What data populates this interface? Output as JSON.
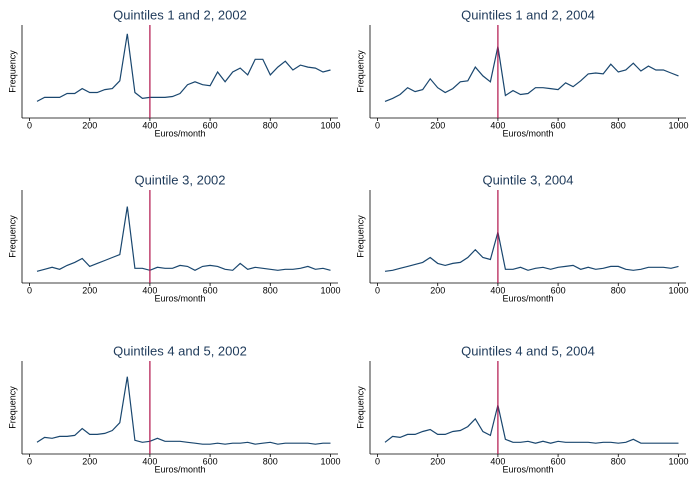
{
  "chart_data": [
    {
      "type": "line",
      "title": "Quintiles 1 and 2, 2002",
      "xlabel": "Euros/month",
      "ylabel": "Frequency",
      "x": [
        25,
        50,
        75,
        100,
        125,
        150,
        175,
        200,
        225,
        250,
        275,
        300,
        325,
        350,
        375,
        400,
        425,
        450,
        475,
        500,
        525,
        550,
        575,
        600,
        625,
        650,
        675,
        700,
        725,
        750,
        775,
        800,
        825,
        850,
        875,
        900,
        925,
        950,
        975,
        1000
      ],
      "series": [
        {
          "color": "#1a476f",
          "values": [
            17,
            21,
            21,
            21,
            25,
            25,
            30,
            26,
            26,
            29,
            30,
            38,
            86,
            26,
            20,
            21,
            21,
            21,
            22,
            25,
            34,
            37,
            34,
            33,
            47,
            37,
            47,
            51,
            44,
            60,
            60,
            44,
            52,
            58,
            49,
            54,
            52,
            51,
            47,
            49
          ]
        }
      ],
      "xlim": [
        -25,
        1025
      ],
      "xticks": [
        0,
        200,
        400,
        600,
        800,
        1000
      ],
      "ylim": [
        0,
        95
      ],
      "vline": 400,
      "vline_color": "#b0124a"
    },
    {
      "type": "line",
      "title": "Quintiles 1 and 2, 2004",
      "xlabel": "Euros/month",
      "ylabel": "Frequency",
      "x": [
        25,
        50,
        75,
        100,
        125,
        150,
        175,
        200,
        225,
        250,
        275,
        300,
        325,
        350,
        375,
        400,
        425,
        450,
        475,
        500,
        525,
        550,
        575,
        600,
        625,
        650,
        675,
        700,
        725,
        750,
        775,
        800,
        825,
        850,
        875,
        900,
        925,
        950,
        975,
        1000
      ],
      "series": [
        {
          "color": "#1a476f",
          "values": [
            17,
            20,
            24,
            31,
            27,
            29,
            40,
            31,
            26,
            30,
            37,
            38,
            52,
            43,
            37,
            73,
            23,
            28,
            24,
            25,
            31,
            31,
            30,
            29,
            36,
            32,
            38,
            45,
            46,
            45,
            55,
            47,
            49,
            56,
            48,
            53,
            49,
            49,
            46,
            43
          ]
        }
      ],
      "xlim": [
        -25,
        1025
      ],
      "xticks": [
        0,
        200,
        400,
        600,
        800,
        1000
      ],
      "ylim": [
        0,
        95
      ],
      "vline": 400,
      "vline_color": "#b0124a"
    },
    {
      "type": "line",
      "title": "Quintile 3, 2002",
      "xlabel": "Euros/month",
      "ylabel": "Frequency",
      "x": [
        25,
        50,
        75,
        100,
        125,
        150,
        175,
        200,
        225,
        250,
        275,
        300,
        325,
        350,
        375,
        400,
        425,
        450,
        475,
        500,
        525,
        550,
        575,
        600,
        625,
        650,
        675,
        700,
        725,
        750,
        775,
        800,
        825,
        850,
        875,
        900,
        925,
        950,
        975,
        1000
      ],
      "series": [
        {
          "color": "#1a476f",
          "values": [
            12,
            14,
            16,
            14,
            18,
            21,
            25,
            17,
            20,
            23,
            26,
            29,
            78,
            15,
            15,
            13,
            16,
            15,
            15,
            18,
            17,
            13,
            17,
            18,
            17,
            14,
            13,
            20,
            14,
            16,
            15,
            14,
            13,
            14,
            14,
            15,
            17,
            14,
            15,
            13
          ]
        }
      ],
      "xlim": [
        -25,
        1025
      ],
      "xticks": [
        0,
        200,
        400,
        600,
        800,
        1000
      ],
      "ylim": [
        0,
        95
      ],
      "vline": 400,
      "vline_color": "#b0124a"
    },
    {
      "type": "line",
      "title": "Quintile 3, 2004",
      "xlabel": "Euros/month",
      "ylabel": "Frequency",
      "x": [
        25,
        50,
        75,
        100,
        125,
        150,
        175,
        200,
        225,
        250,
        275,
        300,
        325,
        350,
        375,
        400,
        425,
        450,
        475,
        500,
        525,
        550,
        575,
        600,
        625,
        650,
        675,
        700,
        725,
        750,
        775,
        800,
        825,
        850,
        875,
        900,
        925,
        950,
        975,
        1000
      ],
      "series": [
        {
          "color": "#1a476f",
          "values": [
            12,
            13,
            15,
            17,
            19,
            21,
            26,
            20,
            18,
            20,
            21,
            26,
            34,
            26,
            24,
            52,
            14,
            14,
            16,
            13,
            15,
            16,
            14,
            16,
            17,
            18,
            14,
            16,
            14,
            15,
            17,
            17,
            14,
            13,
            14,
            16,
            16,
            16,
            15,
            17
          ]
        }
      ],
      "xlim": [
        -25,
        1025
      ],
      "xticks": [
        0,
        200,
        400,
        600,
        800,
        1000
      ],
      "ylim": [
        0,
        95
      ],
      "vline": 400,
      "vline_color": "#b0124a"
    },
    {
      "type": "line",
      "title": "Quintiles 4 and 5, 2002",
      "xlabel": "Euros/month",
      "ylabel": "Frequency",
      "x": [
        25,
        50,
        75,
        100,
        125,
        150,
        175,
        200,
        225,
        250,
        275,
        300,
        325,
        350,
        375,
        400,
        425,
        450,
        475,
        500,
        525,
        550,
        575,
        600,
        625,
        650,
        675,
        700,
        725,
        750,
        775,
        800,
        825,
        850,
        875,
        900,
        925,
        950,
        975,
        1000
      ],
      "series": [
        {
          "color": "#1a476f",
          "values": [
            12,
            17,
            16,
            18,
            18,
            19,
            26,
            20,
            20,
            21,
            24,
            32,
            79,
            14,
            12,
            13,
            16,
            13,
            13,
            13,
            12,
            11,
            10,
            10,
            11,
            10,
            11,
            11,
            12,
            10,
            11,
            12,
            10,
            11,
            11,
            11,
            11,
            10,
            11,
            11
          ]
        }
      ],
      "xlim": [
        -25,
        1025
      ],
      "xticks": [
        0,
        200,
        400,
        600,
        800,
        1000
      ],
      "ylim": [
        0,
        95
      ],
      "vline": 400,
      "vline_color": "#b0124a"
    },
    {
      "type": "line",
      "title": "Quintiles 4 and 5, 2004",
      "xlabel": "Euros/month",
      "ylabel": "Frequency",
      "x": [
        25,
        50,
        75,
        100,
        125,
        150,
        175,
        200,
        225,
        250,
        275,
        300,
        325,
        350,
        375,
        400,
        425,
        450,
        475,
        500,
        525,
        550,
        575,
        600,
        625,
        650,
        675,
        700,
        725,
        750,
        775,
        800,
        825,
        850,
        875,
        900,
        925,
        950,
        975,
        1000
      ],
      "series": [
        {
          "color": "#1a476f",
          "values": [
            12,
            18,
            17,
            20,
            20,
            23,
            25,
            20,
            20,
            23,
            24,
            28,
            36,
            23,
            19,
            50,
            15,
            12,
            12,
            13,
            11,
            13,
            11,
            13,
            12,
            12,
            12,
            12,
            11,
            12,
            12,
            11,
            12,
            15,
            11,
            11,
            11,
            11,
            11,
            11
          ]
        }
      ],
      "xlim": [
        -25,
        1025
      ],
      "xticks": [
        0,
        200,
        400,
        600,
        800,
        1000
      ],
      "ylim": [
        0,
        95
      ],
      "vline": 400,
      "vline_color": "#b0124a"
    }
  ]
}
